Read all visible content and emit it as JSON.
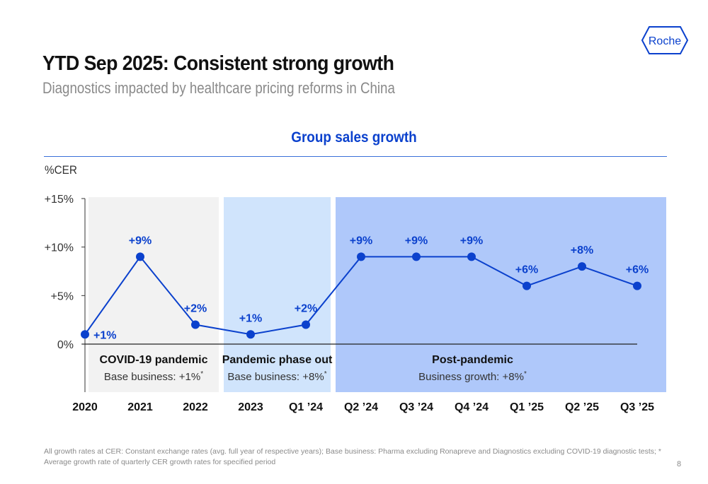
{
  "header": {
    "title": "YTD Sep 2025: Consistent strong growth",
    "subtitle": "Diagnostics impacted by healthcare pricing reforms in China",
    "logo_text": "Roche"
  },
  "colors": {
    "accent": "#0b41cd",
    "brand": "#0b41cd",
    "panel_covid": "#f2f2f2",
    "panel_phaseout": "#d0e4fc",
    "panel_post": "#afc8fa",
    "title_text": "#111111",
    "muted_text": "#8a8a8a"
  },
  "chart_data": {
    "type": "line",
    "title": "Group sales growth",
    "ylabel": "%CER",
    "xlabel": "",
    "ylim": [
      0,
      15
    ],
    "yticks": [
      0,
      5,
      10,
      15
    ],
    "ytick_labels": [
      "0%",
      "+5%",
      "+10%",
      "+15%"
    ],
    "categories": [
      "2020",
      "2021",
      "2022",
      "2023",
      "Q1 ’24",
      "Q2 ’24",
      "Q3 ’24",
      "Q4 ’24",
      "Q1 ’25",
      "Q2 ’25",
      "Q3 ’25"
    ],
    "series": [
      {
        "name": "Group sales growth",
        "values": [
          1,
          9,
          2,
          1,
          2,
          9,
          9,
          9,
          6,
          8,
          6
        ],
        "data_labels": [
          "+1%",
          "+9%",
          "+2%",
          "+1%",
          "+2%",
          "+9%",
          "+9%",
          "+9%",
          "+6%",
          "+8%",
          "+6%"
        ]
      }
    ],
    "grid": false,
    "legend": "none",
    "phases": [
      {
        "name": "COVID-19 pandemic",
        "detail": "Base business: +1%",
        "marker": "*",
        "from": "2020",
        "to": "2022"
      },
      {
        "name": "Pandemic phase out",
        "detail": "Base business: +8%",
        "marker": "*",
        "from": "2023",
        "to": "Q1 ’24"
      },
      {
        "name": "Post-pandemic",
        "detail": "Business growth: +8%",
        "marker": "*",
        "from": "Q2 ’24",
        "to": "Q3 ’25"
      }
    ]
  },
  "footer": {
    "footnote": "All growth rates at CER: Constant exchange rates (avg. full year of respective years); Base business: Pharma excluding Ronapreve and Diagnostics excluding COVID-19 diagnostic tests; * Average growth rate of quarterly CER growth rates for specified period",
    "page_number": "8"
  }
}
